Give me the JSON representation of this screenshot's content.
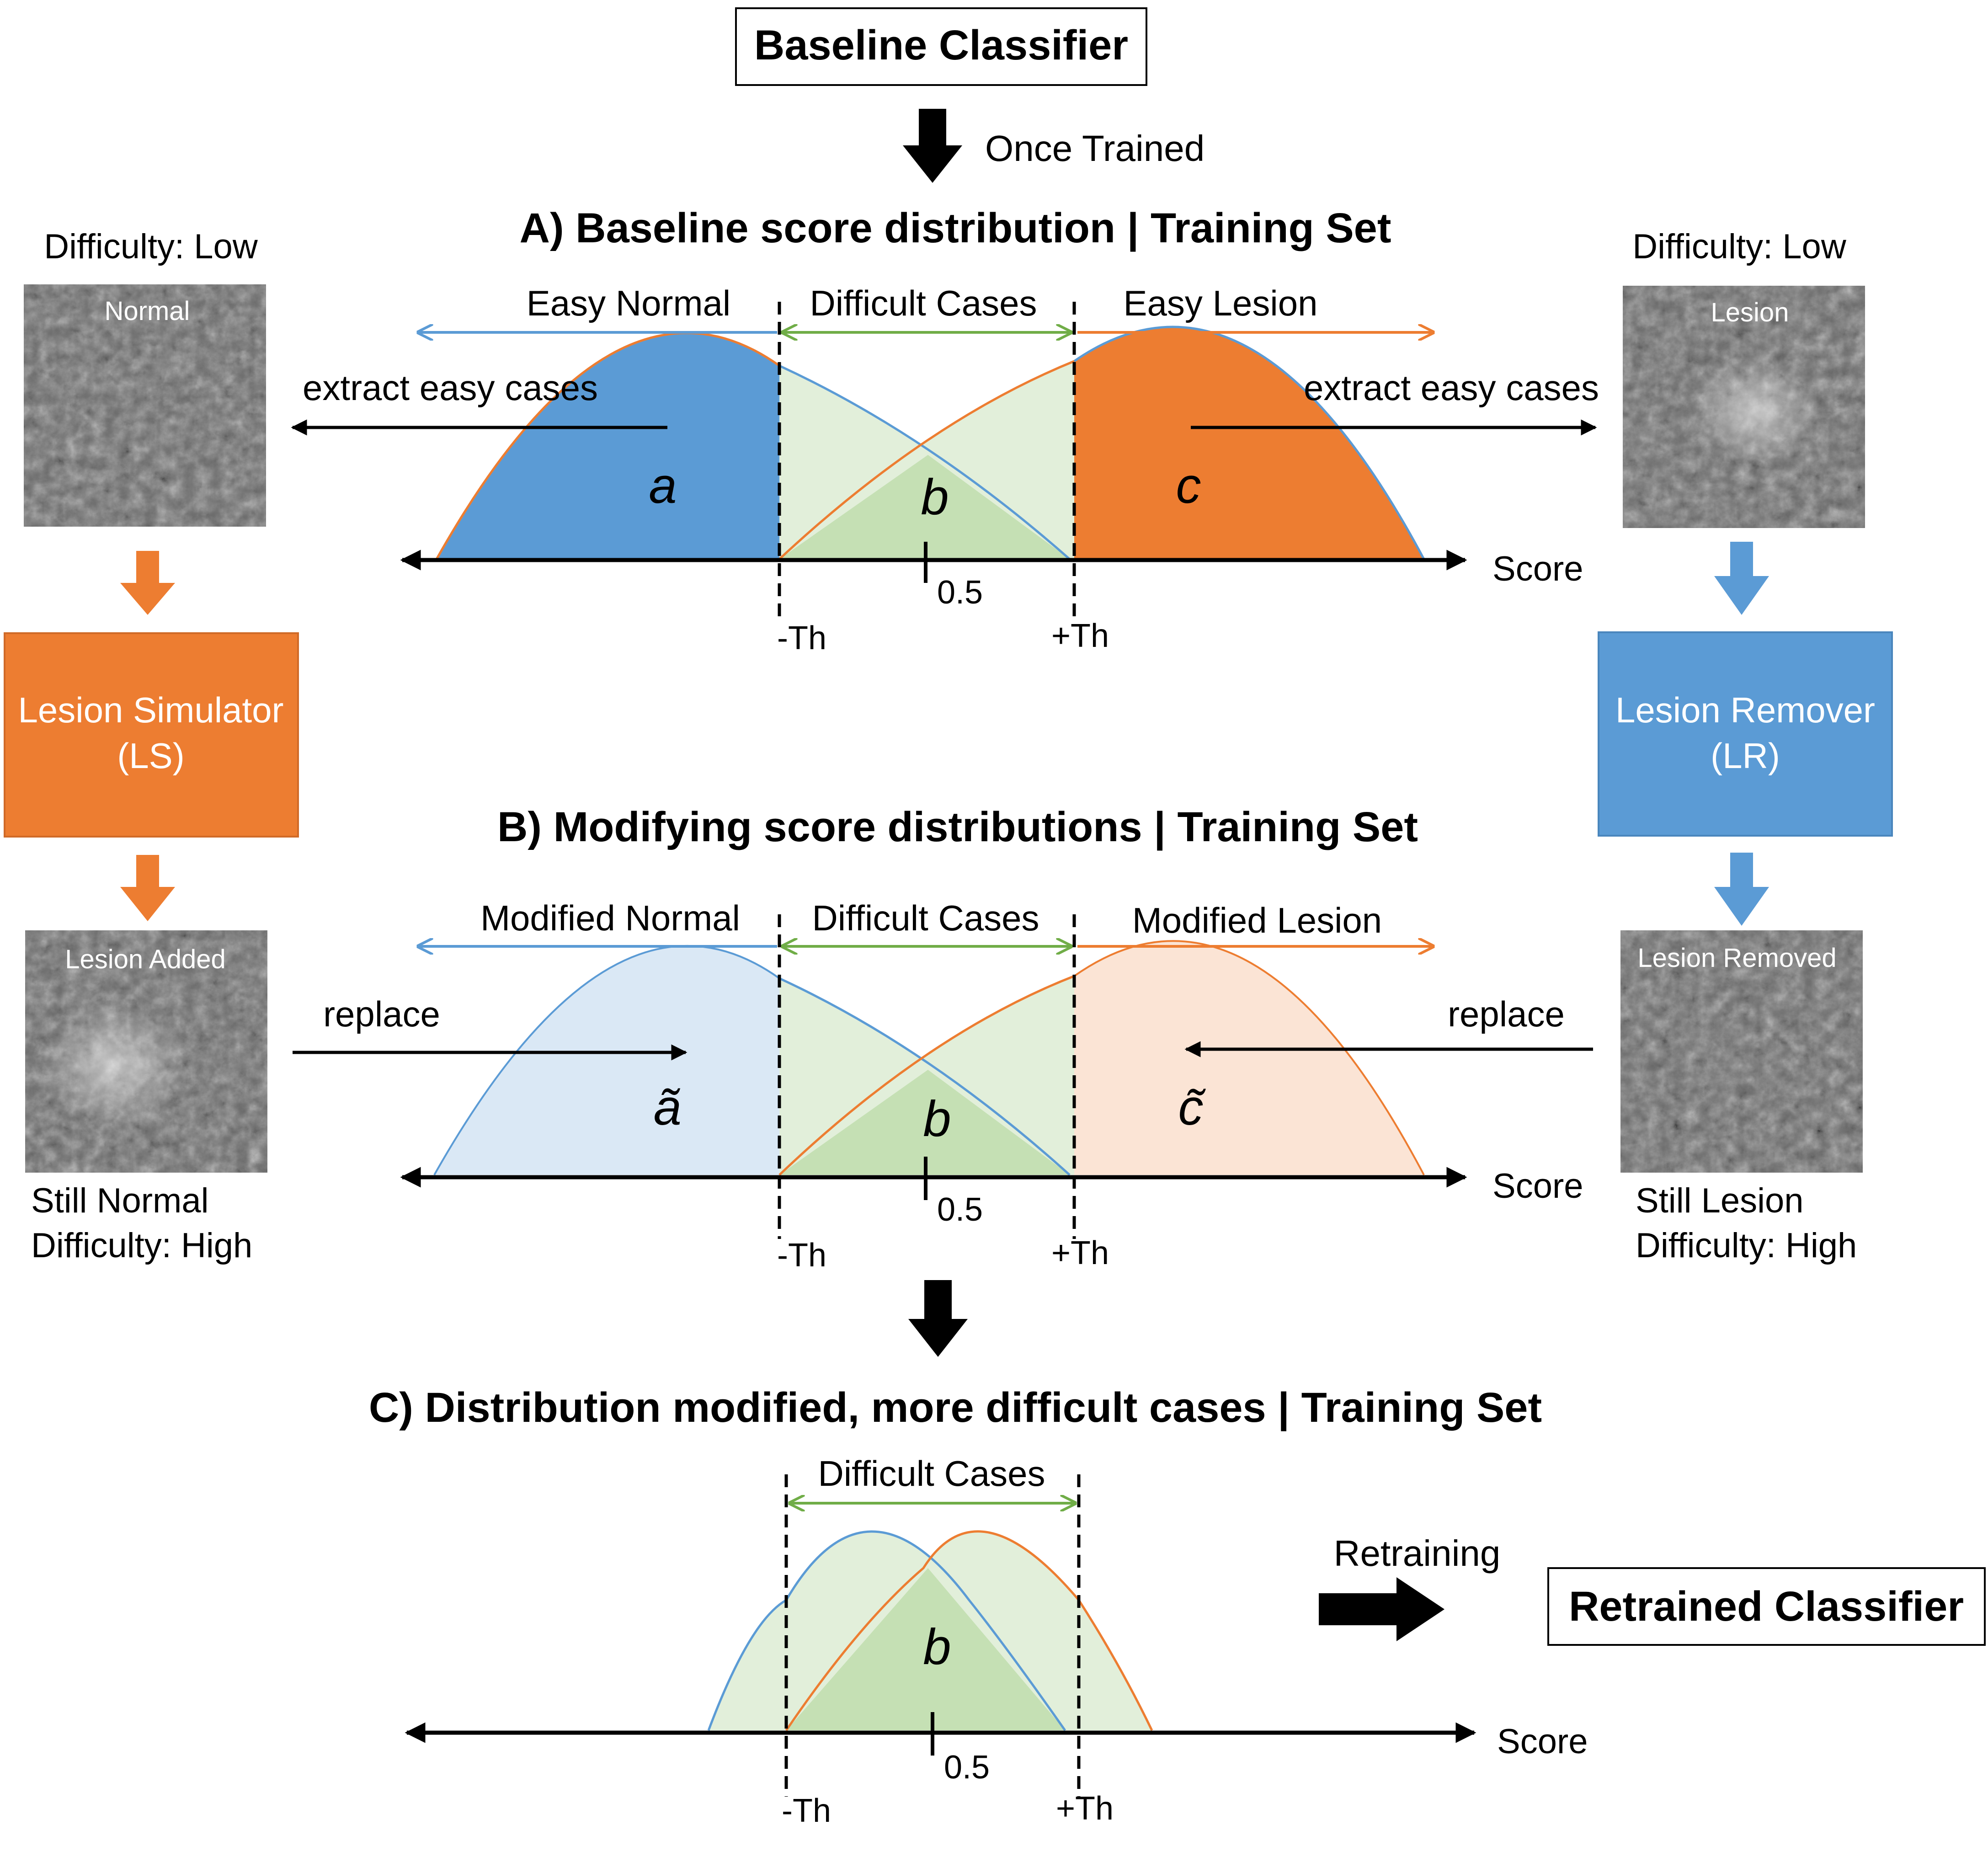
{
  "top_box": {
    "label": "Baseline Classifier"
  },
  "once_trained": "Once Trained",
  "section_a": {
    "title": "A) Baseline score distribution | Training Set",
    "easy_normal": "Easy Normal",
    "difficult_cases": "Difficult Cases",
    "easy_lesion": "Easy Lesion",
    "extract_left": "extract easy cases",
    "extract_right": "extract easy cases",
    "region_a": "a",
    "region_b": "b",
    "region_c": "c",
    "tick_label": "0.5",
    "minus_th": "-Th",
    "plus_th": "+Th",
    "axis_label": "Score"
  },
  "section_b": {
    "title": "B) Modifying score distributions | Training Set",
    "modified_normal": "Modified Normal",
    "difficult_cases": "Difficult Cases",
    "modified_lesion": "Modified Lesion",
    "replace_left": "replace",
    "replace_right": "replace",
    "region_a": "ã",
    "region_b": "b",
    "region_c": "c̃",
    "tick_label": "0.5",
    "minus_th": "-Th",
    "plus_th": "+Th",
    "axis_label": "Score"
  },
  "section_c": {
    "title": "C) Distribution modified, more difficult cases | Training Set",
    "difficult_cases": "Difficult Cases",
    "region_b": "b",
    "tick_label": "0.5",
    "minus_th": "-Th",
    "plus_th": "+Th",
    "axis_label": "Score",
    "retraining": "Retraining"
  },
  "retrained_box": {
    "label": "Retrained Classifier"
  },
  "left_panel": {
    "difficulty_top": "Difficulty: Low",
    "image_top_label": "Normal",
    "simulator_line1": "Lesion Simulator",
    "simulator_line2": "(LS)",
    "image_bottom_label": "Lesion Added",
    "still_label": "Still Normal",
    "difficulty_bottom": "Difficulty: High"
  },
  "right_panel": {
    "difficulty_top": "Difficulty: Low",
    "image_top_label": "Lesion",
    "remover_line1": "Lesion Remover",
    "remover_line2": "(LR)",
    "image_bottom_label": "Lesion Removed",
    "still_label": "Still Lesion",
    "difficulty_bottom": "Difficulty: High"
  },
  "colors": {
    "blue": "#5b9bd5",
    "orange": "#ed7d31",
    "green": "#70ad47",
    "light_green": "#e2efda",
    "mid_green": "#c5e0b4",
    "light_blue": "#dae8f5",
    "light_orange": "#fbe4d5",
    "text": "#000000"
  }
}
